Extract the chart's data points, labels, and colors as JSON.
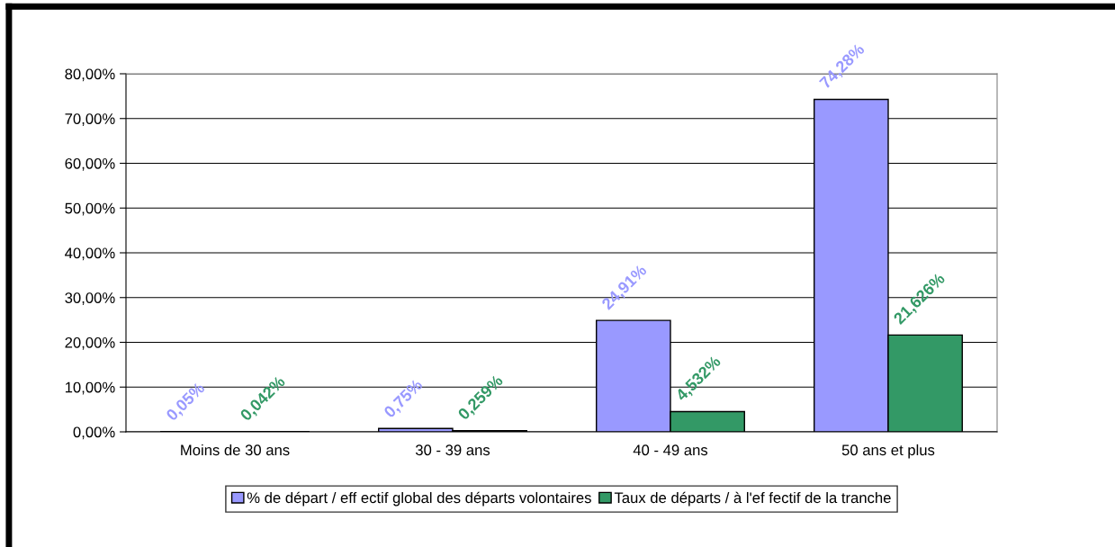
{
  "chart_data": {
    "type": "bar",
    "categories": [
      "Moins de 30 ans",
      "30 - 39 ans",
      "40 - 49 ans",
      "50 ans et plus"
    ],
    "series": [
      {
        "name": "% de départ / eff ectif global des départs volontaires",
        "color": "#9999ff",
        "values": [
          0.05,
          0.75,
          24.91,
          74.28
        ],
        "value_labels": [
          "0,05%",
          "0,75%",
          "24,91%",
          "74,28%"
        ]
      },
      {
        "name": "Taux de départs / à l'ef fectif de la tranche",
        "color": "#339966",
        "values": [
          0.042,
          0.259,
          4.532,
          21.626
        ],
        "value_labels": [
          "0,042%",
          "0,259%",
          "4,532%",
          "21,626%"
        ]
      }
    ],
    "ylim": [
      0,
      80
    ],
    "yticks": [
      {
        "value": 0,
        "label": "0,00%"
      },
      {
        "value": 10,
        "label": "10,00%"
      },
      {
        "value": 20,
        "label": "20,00%"
      },
      {
        "value": 30,
        "label": "30,00%"
      },
      {
        "value": 40,
        "label": "40,00%"
      },
      {
        "value": 50,
        "label": "50,00%"
      },
      {
        "value": 60,
        "label": "60,00%"
      },
      {
        "value": 70,
        "label": "70,00%"
      },
      {
        "value": 80,
        "label": "80,00%"
      }
    ],
    "grid": "y",
    "legend": "bottom"
  }
}
